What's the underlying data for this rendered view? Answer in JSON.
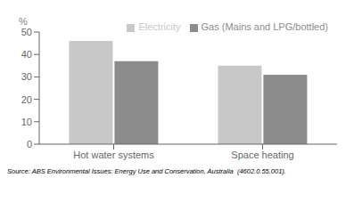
{
  "chart_data": {
    "type": "bar",
    "categories": [
      "Hot water systems",
      "Space heating"
    ],
    "series": [
      {
        "name": "Electricity",
        "color": "#c8c8c8",
        "values": [
          46,
          35
        ]
      },
      {
        "name": "Gas (Mains and LPG/bottled)",
        "color": "#8c8c8c",
        "values": [
          37,
          31
        ]
      }
    ],
    "ylabel": "%",
    "ylim": [
      0,
      50
    ],
    "yticks": [
      0,
      10,
      20,
      30,
      40,
      50
    ],
    "grid": false,
    "legend": "upper right",
    "annotations": [
      "Source: ABS Environmental Issues: Energy Use and Conservation, Australia  (4602.0.55.001)."
    ]
  }
}
